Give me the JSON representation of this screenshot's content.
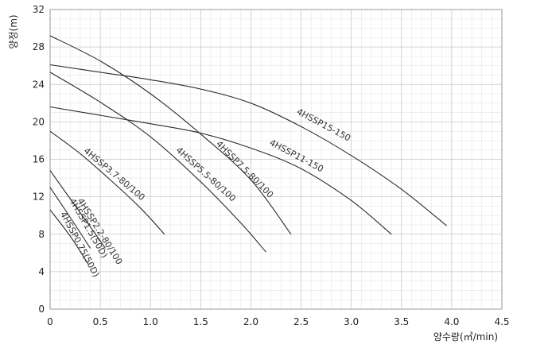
{
  "chart_data": {
    "type": "line",
    "xlabel": "양수량(㎥/min)",
    "ylabel": "양정(m)",
    "xlim": [
      0,
      4.5
    ],
    "ylim": [
      0,
      32
    ],
    "xticks": [
      0,
      0.5,
      1.0,
      1.5,
      2.0,
      2.5,
      3.0,
      3.5,
      4.0,
      4.5
    ],
    "xtick_labels": [
      "0",
      "0.5",
      "1.0",
      "1.5",
      "2.0",
      "2.5",
      "3.0",
      "3.5",
      "4.0",
      "4.5"
    ],
    "yticks": [
      0,
      4,
      8,
      12,
      16,
      20,
      24,
      28,
      32
    ],
    "ytick_labels": [
      "0",
      "4",
      "8",
      "12",
      "16",
      "20",
      "24",
      "28",
      "32"
    ],
    "grid": true,
    "series": [
      {
        "name": "4HSSP15-150",
        "x": [
          0,
          0.5,
          1.0,
          1.5,
          2.0,
          2.5,
          3.0,
          3.5,
          3.95
        ],
        "y": [
          26.1,
          25.3,
          24.5,
          23.5,
          22.0,
          19.5,
          16.4,
          12.8,
          8.9
        ]
      },
      {
        "name": "4HSSP11-150",
        "x": [
          0,
          0.5,
          1.0,
          1.5,
          2.0,
          2.5,
          3.0,
          3.4
        ],
        "y": [
          21.6,
          20.7,
          19.8,
          18.8,
          17.2,
          15.0,
          11.6,
          8.0
        ]
      },
      {
        "name": "4HSSP7.5-80/100",
        "x": [
          0,
          0.5,
          1.0,
          1.5,
          2.0,
          2.4
        ],
        "y": [
          29.2,
          26.5,
          23.0,
          18.7,
          13.8,
          8.0
        ]
      },
      {
        "name": "4HSSP5.5-80/100",
        "x": [
          0,
          0.5,
          1.0,
          1.5,
          1.9,
          2.15
        ],
        "y": [
          25.3,
          22.1,
          18.4,
          13.6,
          9.2,
          6.1
        ]
      },
      {
        "name": "4HSSP3.7-80/100",
        "x": [
          0,
          0.3,
          0.6,
          0.9,
          1.14
        ],
        "y": [
          19.0,
          16.6,
          13.8,
          10.8,
          8.0
        ]
      },
      {
        "name": "4HSSP2.2-80/100",
        "x": [
          0,
          0.2,
          0.4,
          0.55
        ],
        "y": [
          14.8,
          11.8,
          8.8,
          6.5
        ]
      },
      {
        "name": "4HSSP1.5(50D)",
        "x": [
          0,
          0.2,
          0.4
        ],
        "y": [
          13.0,
          9.8,
          6.5
        ]
      },
      {
        "name": "4HSSP0.75(50D)",
        "x": [
          0,
          0.2,
          0.38
        ],
        "y": [
          10.6,
          7.8,
          4.8
        ]
      }
    ]
  }
}
